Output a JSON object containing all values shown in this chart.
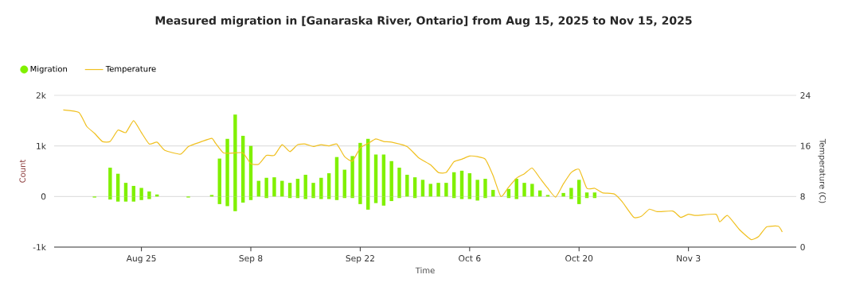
{
  "chart_data": {
    "type": "bar",
    "title": "Measured migration in [Ganaraska River, Ontario] from Aug 15, 2025 to Nov 15, 2025",
    "xlabel": "Time",
    "ylabel": "Count",
    "y2label": "Temperature (C)",
    "x": [
      "2025-08-19",
      "2025-08-21",
      "2025-08-22",
      "2025-08-23",
      "2025-08-24",
      "2025-08-25",
      "2025-08-26",
      "2025-08-27",
      "2025-08-31",
      "2025-09-01",
      "2025-09-03",
      "2025-09-04",
      "2025-09-05",
      "2025-09-06",
      "2025-09-07",
      "2025-09-08",
      "2025-09-09",
      "2025-09-10",
      "2025-09-11",
      "2025-09-12",
      "2025-09-13",
      "2025-09-14",
      "2025-09-15",
      "2025-09-16",
      "2025-09-17",
      "2025-09-18",
      "2025-09-19",
      "2025-09-20",
      "2025-09-21",
      "2025-09-22",
      "2025-09-23",
      "2025-09-24",
      "2025-09-25",
      "2025-09-26",
      "2025-09-27",
      "2025-09-28",
      "2025-09-29",
      "2025-09-30",
      "2025-10-01",
      "2025-10-02",
      "2025-10-03",
      "2025-10-04",
      "2025-10-05",
      "2025-10-06",
      "2025-10-07",
      "2025-10-08",
      "2025-10-09",
      "2025-10-11",
      "2025-10-12",
      "2025-10-13",
      "2025-10-14",
      "2025-10-15",
      "2025-10-16",
      "2025-10-18",
      "2025-10-19",
      "2025-10-20",
      "2025-10-21",
      "2025-10-22"
    ],
    "stacked": true,
    "series": [
      {
        "name": "Migration",
        "color": "#80f000",
        "values": [
          null,
          570,
          450,
          270,
          210,
          170,
          100,
          40,
          null,
          null,
          30,
          750,
          1140,
          1620,
          1200,
          1000,
          310,
          370,
          380,
          310,
          270,
          350,
          430,
          270,
          370,
          460,
          780,
          530,
          800,
          1060,
          1140,
          830,
          830,
          700,
          570,
          430,
          380,
          330,
          250,
          270,
          270,
          480,
          510,
          460,
          330,
          350,
          130,
          150,
          350,
          270,
          250,
          120,
          30,
          70,
          170,
          330,
          80,
          80
        ]
      },
      {
        "color": "#80f000",
        "values": [
          -20,
          -60,
          -100,
          -100,
          -100,
          -70,
          -50,
          null,
          -20,
          null,
          null,
          -150,
          -190,
          -290,
          -120,
          -70,
          null,
          -30,
          null,
          null,
          -30,
          -30,
          -50,
          -30,
          -50,
          -50,
          -70,
          -30,
          -30,
          -150,
          -260,
          -130,
          -180,
          -90,
          -30,
          null,
          -30,
          null,
          null,
          null,
          null,
          -30,
          -50,
          -50,
          -80,
          -30,
          null,
          -30,
          -50,
          null,
          null,
          null,
          null,
          null,
          -50,
          -150,
          -30,
          -30
        ]
      },
      {
        "name": "Temperature",
        "type": "line",
        "axis": "y2",
        "color": "#f0c020",
        "x": [
          "2025-08-15",
          "2025-08-17",
          "2025-08-18",
          "2025-08-19",
          "2025-08-20",
          "2025-08-21",
          "2025-08-22",
          "2025-08-23",
          "2025-08-24",
          "2025-08-25",
          "2025-08-26",
          "2025-08-27",
          "2025-08-28",
          "2025-08-30",
          "2025-08-31",
          "2025-09-01T12:00",
          "2025-09-03",
          "2025-09-03T12:00",
          "2025-09-04T12:00",
          "2025-09-06",
          "2025-09-07",
          "2025-09-08",
          "2025-09-09",
          "2025-09-10",
          "2025-09-11",
          "2025-09-12",
          "2025-09-13",
          "2025-09-14",
          "2025-09-15",
          "2025-09-16",
          "2025-09-17",
          "2025-09-18",
          "2025-09-19",
          "2025-09-20",
          "2025-09-21",
          "2025-09-22",
          "2025-09-23",
          "2025-09-24",
          "2025-09-25",
          "2025-09-26",
          "2025-09-28",
          "2025-09-29T12:00",
          "2025-10-01",
          "2025-10-02",
          "2025-10-03",
          "2025-10-04",
          "2025-10-05",
          "2025-10-06",
          "2025-10-07",
          "2025-10-08",
          "2025-10-09",
          "2025-10-10",
          "2025-10-11",
          "2025-10-12",
          "2025-10-13",
          "2025-10-14",
          "2025-10-15",
          "2025-10-16",
          "2025-10-17",
          "2025-10-18",
          "2025-10-19",
          "2025-10-20",
          "2025-10-21",
          "2025-10-22",
          "2025-10-23",
          "2025-10-24T12:00",
          "2025-10-25T12:00",
          "2025-10-27",
          "2025-10-28",
          "2025-10-29",
          "2025-10-30",
          "2025-11-01",
          "2025-11-02",
          "2025-11-03",
          "2025-11-04",
          "2025-11-06T12:00",
          "2025-11-07",
          "2025-11-08",
          "2025-11-09T12:00",
          "2025-11-11",
          "2025-11-12",
          "2025-11-13",
          "2025-11-14T12:00",
          "2025-11-15"
        ],
        "values": [
          21.7,
          21.3,
          19.1,
          18.0,
          16.7,
          16.7,
          18.5,
          18.1,
          20.0,
          18.1,
          16.3,
          16.6,
          15.3,
          14.7,
          15.9,
          16.6,
          17.2,
          16.4,
          14.9,
          14.9,
          14.9,
          13.2,
          13.1,
          14.5,
          14.5,
          16.2,
          15.1,
          16.2,
          16.3,
          15.9,
          16.2,
          16.0,
          16.3,
          14.3,
          13.6,
          15.7,
          16.4,
          17.1,
          16.7,
          16.6,
          15.9,
          14.1,
          13.0,
          11.8,
          11.8,
          13.5,
          13.9,
          14.4,
          14.3,
          13.9,
          11.3,
          8.0,
          9.5,
          10.9,
          11.6,
          12.5,
          10.9,
          9.3,
          7.9,
          10.0,
          11.8,
          12.3,
          9.3,
          9.3,
          8.6,
          8.4,
          7.2,
          4.7,
          4.9,
          6.0,
          5.6,
          5.7,
          4.7,
          5.2,
          5.0,
          5.2,
          4.0,
          5.0,
          2.8,
          1.2,
          1.7,
          3.2,
          3.3,
          2.4
        ]
      }
    ],
    "xlim": [
      "2025-08-13T20:00",
      "2025-11-16T19:00"
    ],
    "xticks": [
      {
        "value": "2025-08-25",
        "label": "Aug 25"
      },
      {
        "value": "2025-09-08",
        "label": "Sep 8"
      },
      {
        "value": "2025-09-22",
        "label": "Sep 22"
      },
      {
        "value": "2025-10-06",
        "label": "Oct 6"
      },
      {
        "value": "2025-10-20",
        "label": "Oct 20"
      },
      {
        "value": "2025-11-03",
        "label": "Nov 3"
      }
    ],
    "ylim": [
      -1000,
      2000
    ],
    "yticks": [
      {
        "value": -1000,
        "label": "-1k"
      },
      0,
      {
        "value": 1000,
        "label": "1k"
      },
      {
        "value": 2000,
        "label": "2k"
      }
    ],
    "y2lim": [
      0,
      24
    ],
    "y2ticks": [
      0,
      8,
      16,
      24
    ],
    "grid": "y",
    "legend": "top left"
  }
}
